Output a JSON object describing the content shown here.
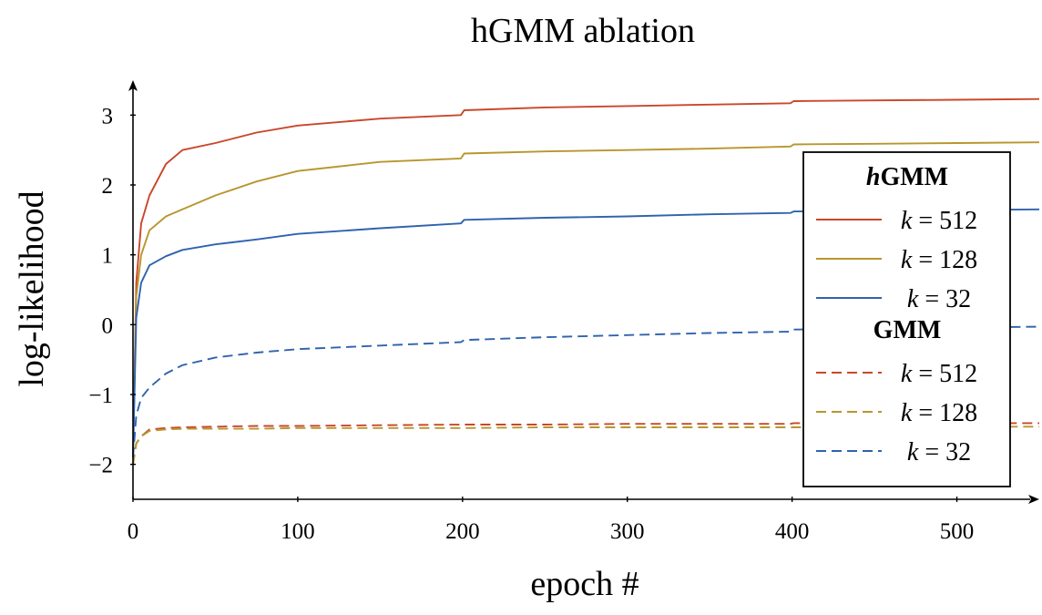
{
  "chart_data": {
    "type": "line",
    "title": "hGMM ablation",
    "xlabel": "epoch #",
    "ylabel": "log-likelihood",
    "xlim": [
      0,
      550
    ],
    "ylim": [
      -2.5,
      3.5
    ],
    "x_ticks": [
      0,
      100,
      200,
      300,
      400,
      500
    ],
    "y_ticks": [
      -2,
      -1,
      0,
      1,
      2,
      3
    ],
    "grid": false,
    "legend_position": "right",
    "legend": {
      "groups": [
        {
          "heading_prefix": "h",
          "heading_rest": "GMM",
          "entries": [
            {
              "k": "k",
              "eq": "= 512",
              "color": "#c9472a",
              "dash": "solid"
            },
            {
              "k": "k",
              "eq": "= 128",
              "color": "#b8962e",
              "dash": "solid"
            },
            {
              "k": "k",
              "eq": "= 32",
              "color": "#2f63ad",
              "dash": "solid"
            }
          ]
        },
        {
          "heading_prefix": "",
          "heading_rest": "GMM",
          "entries": [
            {
              "k": "k",
              "eq": "= 512",
              "color": "#c9472a",
              "dash": "dashed"
            },
            {
              "k": "k",
              "eq": "= 128",
              "color": "#b8962e",
              "dash": "dashed"
            },
            {
              "k": "k",
              "eq": "= 32",
              "color": "#2f63ad",
              "dash": "dashed"
            }
          ]
        }
      ]
    },
    "x": [
      0,
      2,
      5,
      10,
      20,
      30,
      50,
      75,
      100,
      150,
      199,
      201,
      250,
      300,
      350,
      399,
      401,
      450,
      500,
      550
    ],
    "series": [
      {
        "name": "hGMM k = 512",
        "color": "#c9472a",
        "dash": "solid",
        "values": [
          -1.9,
          0.6,
          1.45,
          1.85,
          2.3,
          2.5,
          2.6,
          2.75,
          2.85,
          2.95,
          3.0,
          3.07,
          3.11,
          3.13,
          3.15,
          3.17,
          3.2,
          3.21,
          3.22,
          3.23
        ]
      },
      {
        "name": "hGMM k = 128",
        "color": "#b8962e",
        "dash": "solid",
        "values": [
          -1.9,
          0.4,
          1.0,
          1.35,
          1.55,
          1.65,
          1.85,
          2.05,
          2.2,
          2.33,
          2.38,
          2.45,
          2.48,
          2.5,
          2.52,
          2.55,
          2.58,
          2.59,
          2.6,
          2.61
        ]
      },
      {
        "name": "hGMM k = 32",
        "color": "#2f63ad",
        "dash": "solid",
        "values": [
          -1.9,
          0.1,
          0.6,
          0.85,
          0.98,
          1.07,
          1.15,
          1.22,
          1.3,
          1.38,
          1.45,
          1.5,
          1.53,
          1.55,
          1.58,
          1.6,
          1.62,
          1.63,
          1.64,
          1.65
        ]
      },
      {
        "name": "GMM k = 512",
        "color": "#c9472a",
        "dash": "dashed",
        "values": [
          -2.0,
          -1.7,
          -1.6,
          -1.5,
          -1.48,
          -1.47,
          -1.46,
          -1.45,
          -1.45,
          -1.44,
          -1.43,
          -1.43,
          -1.43,
          -1.42,
          -1.42,
          -1.42,
          -1.41,
          -1.41,
          -1.41,
          -1.41
        ]
      },
      {
        "name": "GMM k = 128",
        "color": "#b8962e",
        "dash": "dashed",
        "values": [
          -2.0,
          -1.7,
          -1.6,
          -1.52,
          -1.5,
          -1.49,
          -1.49,
          -1.49,
          -1.48,
          -1.48,
          -1.48,
          -1.48,
          -1.47,
          -1.47,
          -1.47,
          -1.47,
          -1.47,
          -1.47,
          -1.46,
          -1.46
        ]
      },
      {
        "name": "GMM k = 32",
        "color": "#2f63ad",
        "dash": "dashed",
        "values": [
          -1.9,
          -1.3,
          -1.05,
          -0.9,
          -0.7,
          -0.58,
          -0.47,
          -0.4,
          -0.35,
          -0.3,
          -0.25,
          -0.22,
          -0.18,
          -0.15,
          -0.12,
          -0.1,
          -0.07,
          -0.05,
          -0.04,
          -0.03
        ]
      }
    ]
  }
}
